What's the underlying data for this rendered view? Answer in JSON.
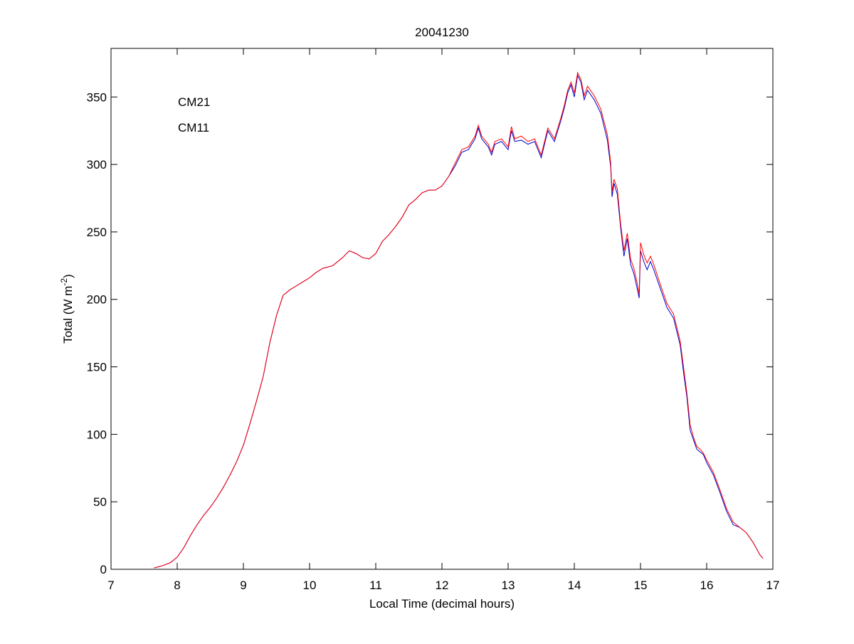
{
  "chart_data": {
    "type": "line",
    "title": "20041230",
    "xlabel": "Local Time (decimal hours)",
    "ylabel": {
      "text": "Total (W m",
      "superscript": "-2",
      "suffix": ")"
    },
    "xlim": [
      7,
      17
    ],
    "xticks": [
      7,
      8,
      9,
      10,
      11,
      12,
      13,
      14,
      15,
      16,
      17
    ],
    "ylim": [
      0,
      386
    ],
    "yticks": [
      0,
      50,
      100,
      150,
      200,
      250,
      300,
      350
    ],
    "legend": "upper left",
    "grid": false,
    "x": [
      7.65,
      7.8,
      7.9,
      8.0,
      8.1,
      8.2,
      8.3,
      8.4,
      8.5,
      8.6,
      8.7,
      8.8,
      8.9,
      9.0,
      9.1,
      9.2,
      9.3,
      9.4,
      9.45,
      9.5,
      9.6,
      9.7,
      9.8,
      9.9,
      10.0,
      10.1,
      10.2,
      10.35,
      10.5,
      10.6,
      10.7,
      10.8,
      10.9,
      11.0,
      11.1,
      11.2,
      11.3,
      11.4,
      11.5,
      11.6,
      11.7,
      11.8,
      11.9,
      12.0,
      12.1,
      12.2,
      12.3,
      12.4,
      12.5,
      12.55,
      12.6,
      12.7,
      12.75,
      12.8,
      12.9,
      13.0,
      13.05,
      13.1,
      13.2,
      13.3,
      13.4,
      13.5,
      13.6,
      13.7,
      13.8,
      13.85,
      13.9,
      13.95,
      14.0,
      14.05,
      14.1,
      14.15,
      14.2,
      14.3,
      14.4,
      14.5,
      14.55,
      14.57,
      14.6,
      14.65,
      14.7,
      14.75,
      14.8,
      14.85,
      14.9,
      14.95,
      14.98,
      15.0,
      15.05,
      15.1,
      15.15,
      15.2,
      15.3,
      15.4,
      15.5,
      15.6,
      15.65,
      15.7,
      15.75,
      15.8,
      15.85,
      15.9,
      15.95,
      16.0,
      16.1,
      16.2,
      16.3,
      16.4,
      16.5,
      16.6,
      16.7,
      16.8,
      16.85
    ],
    "series": [
      {
        "name": "CM21",
        "color": "#0000c8",
        "values": [
          1,
          3,
          5,
          9,
          16,
          25,
          33,
          40,
          46,
          53,
          61,
          70,
          80,
          92,
          108,
          125,
          143,
          168,
          178,
          188,
          203,
          207,
          210,
          213,
          216,
          220,
          223,
          225,
          231,
          236,
          234,
          231,
          230,
          234,
          243,
          248,
          254,
          261,
          270,
          274,
          279,
          281,
          281,
          284,
          291,
          299,
          309,
          311,
          319,
          327,
          319,
          313,
          307,
          315,
          317,
          311,
          325,
          317,
          318,
          315,
          317,
          305,
          325,
          317,
          333,
          342,
          353,
          359,
          350,
          366,
          361,
          348,
          355,
          348,
          338,
          318,
          298,
          276,
          286,
          278,
          253,
          232,
          245,
          226,
          219,
          208,
          201,
          236,
          228,
          222,
          228,
          222,
          208,
          194,
          186,
          166,
          146,
          128,
          103,
          96,
          89,
          87,
          85,
          79,
          70,
          57,
          43,
          33,
          31,
          27,
          20,
          11,
          8
        ]
      },
      {
        "name": "CM11",
        "color": "#ff0000",
        "values": [
          1,
          3,
          5,
          9,
          16,
          25,
          33,
          40,
          46,
          53,
          61,
          70,
          80,
          92,
          108,
          125,
          143,
          168,
          178,
          188,
          203,
          207,
          210,
          213,
          216,
          220,
          223,
          225,
          231,
          236,
          234,
          231,
          230,
          234,
          243,
          248,
          254,
          261,
          270,
          274,
          279,
          281,
          281,
          284,
          291,
          301,
          311,
          313,
          321,
          329,
          321,
          315,
          309,
          317,
          319,
          313,
          328,
          319,
          321,
          317,
          319,
          307,
          327,
          319,
          335,
          344,
          355,
          361,
          353,
          368,
          363,
          351,
          358,
          351,
          341,
          322,
          301,
          280,
          289,
          282,
          256,
          236,
          249,
          230,
          223,
          212,
          204,
          242,
          233,
          227,
          232,
          226,
          211,
          197,
          189,
          169,
          150,
          131,
          107,
          98,
          91,
          89,
          86,
          81,
          72,
          59,
          45,
          35,
          31,
          27,
          20,
          11,
          8
        ]
      }
    ]
  }
}
